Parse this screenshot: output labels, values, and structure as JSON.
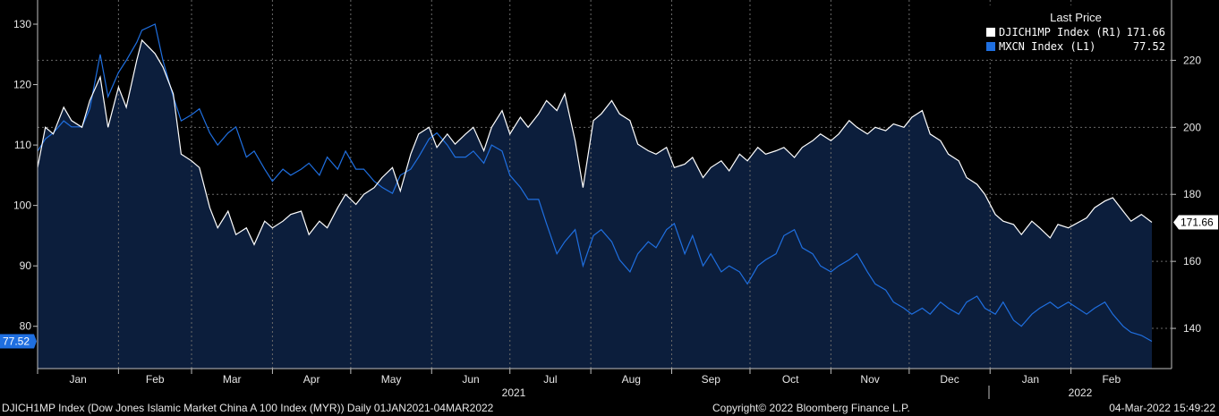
{
  "legend": {
    "title": "Last Price",
    "items": [
      {
        "name": "DJICH1MP Index  (R1)",
        "value": "171.66",
        "color": "#ffffff"
      },
      {
        "name": "MXCN Index  (L1)",
        "value": "77.52",
        "color": "#1f6fe0"
      }
    ]
  },
  "footer": {
    "left": "DJICH1MP Index (Dow Jones Islamic Market China A 100 Index (MYR))  Daily 01JAN2021-04MAR2022",
    "center": "Copyright© 2022 Bloomberg Finance L.P.",
    "right": "04-Mar-2022 15:49:22"
  },
  "colors": {
    "background": "#000000",
    "area_fill": "#0c1e3c",
    "white_line": "#ffffff",
    "blue_line": "#1f6fe0",
    "grid": "#6a6a6a"
  },
  "chart_data": {
    "type": "line",
    "grid": true,
    "x_months": [
      "Jan",
      "Feb",
      "Mar",
      "Apr",
      "May",
      "Jun",
      "Jul",
      "Aug",
      "Sep",
      "Oct",
      "Nov",
      "Dec",
      "Jan",
      "Feb"
    ],
    "x_years": [
      "2021",
      "2022"
    ],
    "x_range": [
      "2021-01-01",
      "2022-03-04"
    ],
    "left_axis": {
      "ticks": [
        80,
        90,
        100,
        110,
        120,
        130
      ],
      "range": [
        73,
        134
      ]
    },
    "right_axis": {
      "ticks": [
        140,
        160,
        180,
        200,
        220
      ],
      "range": [
        128,
        238
      ]
    },
    "series": [
      {
        "name": "DJICH1MP Index  (R1)",
        "axis": "right",
        "last_value": 171.66,
        "x": [
          "2021-01-01",
          "2021-01-04",
          "2021-01-07",
          "2021-01-11",
          "2021-01-14",
          "2021-01-18",
          "2021-01-21",
          "2021-01-25",
          "2021-01-28",
          "2021-02-01",
          "2021-02-04",
          "2021-02-08",
          "2021-02-10",
          "2021-02-15",
          "2021-02-18",
          "2021-02-22",
          "2021-02-25",
          "2021-03-01",
          "2021-03-04",
          "2021-03-08",
          "2021-03-11",
          "2021-03-15",
          "2021-03-18",
          "2021-03-22",
          "2021-03-25",
          "2021-03-29",
          "2021-04-01",
          "2021-04-05",
          "2021-04-08",
          "2021-04-12",
          "2021-04-15",
          "2021-04-19",
          "2021-04-22",
          "2021-04-26",
          "2021-04-29",
          "2021-05-03",
          "2021-05-06",
          "2021-05-10",
          "2021-05-13",
          "2021-05-17",
          "2021-05-20",
          "2021-05-24",
          "2021-05-27",
          "2021-05-31",
          "2021-06-03",
          "2021-06-07",
          "2021-06-10",
          "2021-06-14",
          "2021-06-17",
          "2021-06-21",
          "2021-06-24",
          "2021-06-28",
          "2021-07-01",
          "2021-07-05",
          "2021-07-08",
          "2021-07-12",
          "2021-07-15",
          "2021-07-19",
          "2021-07-22",
          "2021-07-26",
          "2021-07-29",
          "2021-08-02",
          "2021-08-05",
          "2021-08-09",
          "2021-08-12",
          "2021-08-16",
          "2021-08-19",
          "2021-08-23",
          "2021-08-26",
          "2021-08-30",
          "2021-09-02",
          "2021-09-06",
          "2021-09-09",
          "2021-09-13",
          "2021-09-16",
          "2021-09-20",
          "2021-09-23",
          "2021-09-27",
          "2021-09-30",
          "2021-10-04",
          "2021-10-07",
          "2021-10-11",
          "2021-10-14",
          "2021-10-18",
          "2021-10-21",
          "2021-10-25",
          "2021-10-28",
          "2021-11-01",
          "2021-11-04",
          "2021-11-08",
          "2021-11-11",
          "2021-11-15",
          "2021-11-18",
          "2021-11-22",
          "2021-11-25",
          "2021-11-29",
          "2021-12-02",
          "2021-12-06",
          "2021-12-09",
          "2021-12-13",
          "2021-12-16",
          "2021-12-20",
          "2021-12-23",
          "2021-12-27",
          "2021-12-30",
          "2022-01-03",
          "2022-01-06",
          "2022-01-10",
          "2022-01-13",
          "2022-01-17",
          "2022-01-20",
          "2022-01-24",
          "2022-01-27",
          "2022-01-31",
          "2022-02-07",
          "2022-02-10",
          "2022-02-14",
          "2022-02-17",
          "2022-02-21",
          "2022-02-24",
          "2022-02-28",
          "2022-03-04"
        ],
        "values": [
          188,
          200,
          198,
          206,
          202,
          200,
          208,
          215,
          200,
          212,
          206,
          220,
          226,
          222,
          218,
          210,
          192,
          190,
          188,
          176,
          170,
          175,
          168,
          170,
          165,
          172,
          170,
          172,
          174,
          175,
          168,
          172,
          170,
          176,
          180,
          177,
          180,
          182,
          185,
          188,
          181,
          192,
          198,
          200,
          194,
          198,
          195,
          198,
          200,
          193,
          200,
          205,
          198,
          203,
          200,
          204,
          208,
          205,
          210,
          196,
          182,
          202,
          204,
          208,
          204,
          202,
          195,
          193,
          192,
          194,
          188,
          189,
          191,
          185,
          188,
          190,
          187,
          192,
          190,
          194,
          192,
          193,
          194,
          191,
          194,
          196,
          198,
          196,
          198,
          202,
          200,
          198,
          200,
          199,
          201,
          200,
          203,
          205,
          198,
          196,
          192,
          190,
          185,
          183,
          180,
          174,
          172,
          171,
          168,
          172,
          170,
          167,
          171,
          170,
          173,
          176,
          178,
          179,
          175,
          172,
          174,
          171.66
        ]
      },
      {
        "name": "MXCN Index  (L1)",
        "axis": "left",
        "last_value": 77.52,
        "x": [
          "2021-01-01",
          "2021-01-04",
          "2021-01-07",
          "2021-01-11",
          "2021-01-14",
          "2021-01-18",
          "2021-01-21",
          "2021-01-25",
          "2021-01-28",
          "2021-02-01",
          "2021-02-04",
          "2021-02-08",
          "2021-02-10",
          "2021-02-15",
          "2021-02-18",
          "2021-02-22",
          "2021-02-25",
          "2021-03-01",
          "2021-03-04",
          "2021-03-08",
          "2021-03-11",
          "2021-03-15",
          "2021-03-18",
          "2021-03-22",
          "2021-03-25",
          "2021-03-29",
          "2021-04-01",
          "2021-04-05",
          "2021-04-08",
          "2021-04-12",
          "2021-04-15",
          "2021-04-19",
          "2021-04-22",
          "2021-04-26",
          "2021-04-29",
          "2021-05-03",
          "2021-05-06",
          "2021-05-10",
          "2021-05-13",
          "2021-05-17",
          "2021-05-20",
          "2021-05-24",
          "2021-05-27",
          "2021-05-31",
          "2021-06-03",
          "2021-06-07",
          "2021-06-10",
          "2021-06-14",
          "2021-06-17",
          "2021-06-21",
          "2021-06-24",
          "2021-06-28",
          "2021-07-01",
          "2021-07-05",
          "2021-07-08",
          "2021-07-12",
          "2021-07-15",
          "2021-07-19",
          "2021-07-22",
          "2021-07-26",
          "2021-07-29",
          "2021-08-02",
          "2021-08-05",
          "2021-08-09",
          "2021-08-12",
          "2021-08-16",
          "2021-08-19",
          "2021-08-23",
          "2021-08-26",
          "2021-08-30",
          "2021-09-02",
          "2021-09-06",
          "2021-09-09",
          "2021-09-13",
          "2021-09-16",
          "2021-09-20",
          "2021-09-23",
          "2021-09-27",
          "2021-09-30",
          "2021-10-04",
          "2021-10-07",
          "2021-10-11",
          "2021-10-14",
          "2021-10-18",
          "2021-10-21",
          "2021-10-25",
          "2021-10-28",
          "2021-11-01",
          "2021-11-04",
          "2021-11-08",
          "2021-11-11",
          "2021-11-15",
          "2021-11-18",
          "2021-11-22",
          "2021-11-25",
          "2021-11-29",
          "2021-12-02",
          "2021-12-06",
          "2021-12-09",
          "2021-12-13",
          "2021-12-16",
          "2021-12-20",
          "2021-12-23",
          "2021-12-27",
          "2021-12-30",
          "2022-01-03",
          "2022-01-06",
          "2022-01-10",
          "2022-01-13",
          "2022-01-17",
          "2022-01-20",
          "2022-01-24",
          "2022-01-27",
          "2022-01-31",
          "2022-02-07",
          "2022-02-10",
          "2022-02-14",
          "2022-02-17",
          "2022-02-21",
          "2022-02-24",
          "2022-02-28",
          "2022-03-04"
        ],
        "values": [
          109,
          111,
          112,
          114,
          113,
          113,
          116,
          125,
          118,
          122,
          124,
          127,
          129,
          130,
          124,
          118,
          114,
          115,
          116,
          112,
          110,
          112,
          113,
          108,
          109,
          106,
          104,
          106,
          105,
          106,
          107,
          105,
          108,
          106,
          109,
          106,
          106,
          104,
          103,
          102,
          105,
          106,
          108,
          111,
          112,
          110,
          108,
          108,
          109,
          107,
          110,
          109,
          105,
          103,
          101,
          101,
          97,
          92,
          94,
          96,
          90,
          95,
          96,
          94,
          91,
          89,
          92,
          94,
          93,
          96,
          97,
          92,
          95,
          90,
          92,
          89,
          90,
          89,
          87,
          90,
          91,
          92,
          95,
          96,
          93,
          92,
          90,
          89,
          90,
          91,
          92,
          89,
          87,
          86,
          84,
          83,
          82,
          83,
          82,
          84,
          83,
          82,
          84,
          85,
          83,
          82,
          84,
          81,
          80,
          82,
          83,
          84,
          83,
          84,
          82,
          83,
          84,
          82,
          80,
          79,
          78.5,
          77.52
        ]
      }
    ]
  }
}
